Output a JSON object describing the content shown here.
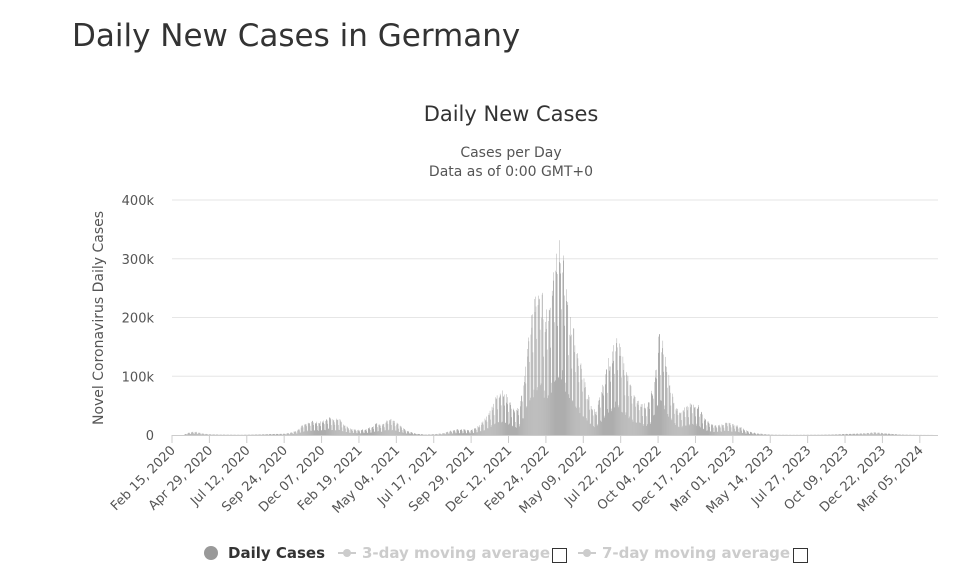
{
  "page": {
    "title": "Daily New Cases in Germany"
  },
  "chart_data": {
    "type": "bar",
    "title": "Daily New Cases",
    "subtitle_lines": [
      "Cases per Day",
      "Data as of 0:00 GMT+0"
    ],
    "ylabel": "Novel Coronavirus Daily Cases",
    "xlabel": "",
    "ylim": [
      0,
      400000
    ],
    "y_ticks": [
      0,
      100000,
      200000,
      300000,
      400000
    ],
    "y_tick_labels": [
      "0",
      "100k",
      "200k",
      "300k",
      "400k"
    ],
    "x_range": [
      "2020-02-15",
      "2024-04-10"
    ],
    "x_tick_dates": [
      "2020-02-15",
      "2020-04-29",
      "2020-07-12",
      "2020-09-24",
      "2020-12-07",
      "2021-02-19",
      "2021-05-04",
      "2021-07-17",
      "2021-09-29",
      "2021-12-12",
      "2022-02-24",
      "2022-05-09",
      "2022-07-22",
      "2022-10-04",
      "2022-12-17",
      "2023-03-01",
      "2023-05-14",
      "2023-07-27",
      "2023-10-09",
      "2023-12-22",
      "2024-03-05"
    ],
    "x_tick_labels": [
      "Feb 15, 2020",
      "Apr 29, 2020",
      "Jul 12, 2020",
      "Sep 24, 2020",
      "Dec 07, 2020",
      "Feb 19, 2021",
      "May 04, 2021",
      "Jul 17, 2021",
      "Sep 29, 2021",
      "Dec 12, 2021",
      "Feb 24, 2022",
      "May 09, 2022",
      "Jul 22, 2022",
      "Oct 04, 2022",
      "Dec 17, 2022",
      "Mar 01, 2023",
      "May 14, 2023",
      "Jul 27, 2023",
      "Oct 09, 2023",
      "Dec 22, 2023",
      "Mar 05, 2024"
    ],
    "grid": true,
    "series": [
      {
        "name": "Daily Cases",
        "color": "#999999",
        "points": [
          [
            "2020-03-10",
            1000
          ],
          [
            "2020-03-20",
            4000
          ],
          [
            "2020-03-28",
            5500
          ],
          [
            "2020-04-05",
            4500
          ],
          [
            "2020-04-15",
            2500
          ],
          [
            "2020-04-28",
            1200
          ],
          [
            "2020-05-20",
            600
          ],
          [
            "2020-07-01",
            400
          ],
          [
            "2020-08-15",
            1200
          ],
          [
            "2020-09-24",
            2000
          ],
          [
            "2020-10-10",
            4500
          ],
          [
            "2020-10-20",
            8000
          ],
          [
            "2020-10-28",
            15000
          ],
          [
            "2020-11-05",
            20000
          ],
          [
            "2020-11-20",
            22000
          ],
          [
            "2020-12-05",
            21000
          ],
          [
            "2020-12-15",
            25000
          ],
          [
            "2020-12-22",
            30000
          ],
          [
            "2021-01-01",
            22000
          ],
          [
            "2021-01-08",
            28000
          ],
          [
            "2021-01-20",
            17000
          ],
          [
            "2021-02-01",
            11000
          ],
          [
            "2021-02-15",
            8000
          ],
          [
            "2021-03-01",
            9000
          ],
          [
            "2021-03-15",
            13000
          ],
          [
            "2021-03-25",
            19000
          ],
          [
            "2021-04-05",
            16000
          ],
          [
            "2021-04-12",
            22000
          ],
          [
            "2021-04-20",
            27000
          ],
          [
            "2021-04-28",
            24000
          ],
          [
            "2021-05-10",
            15000
          ],
          [
            "2021-05-25",
            7000
          ],
          [
            "2021-06-10",
            2500
          ],
          [
            "2021-07-01",
            700
          ],
          [
            "2021-07-20",
            1500
          ],
          [
            "2021-08-05",
            3000
          ],
          [
            "2021-08-20",
            7000
          ],
          [
            "2021-09-01",
            10000
          ],
          [
            "2021-09-15",
            9000
          ],
          [
            "2021-09-29",
            8000
          ],
          [
            "2021-10-10",
            12000
          ],
          [
            "2021-10-20",
            20000
          ],
          [
            "2021-11-01",
            32000
          ],
          [
            "2021-11-10",
            48000
          ],
          [
            "2021-11-18",
            62000
          ],
          [
            "2021-11-25",
            72000
          ],
          [
            "2021-12-05",
            65000
          ],
          [
            "2021-12-15",
            52000
          ],
          [
            "2021-12-25",
            35000
          ],
          [
            "2022-01-02",
            45000
          ],
          [
            "2022-01-10",
            85000
          ],
          [
            "2022-01-18",
            140000
          ],
          [
            "2022-01-25",
            185000
          ],
          [
            "2022-02-01",
            210000
          ],
          [
            "2022-02-08",
            240000
          ],
          [
            "2022-02-15",
            225000
          ],
          [
            "2022-02-24",
            190000
          ],
          [
            "2022-03-03",
            210000
          ],
          [
            "2022-03-10",
            260000
          ],
          [
            "2022-03-17",
            300000
          ],
          [
            "2022-03-24",
            298000
          ],
          [
            "2022-03-31",
            270000
          ],
          [
            "2022-04-07",
            210000
          ],
          [
            "2022-04-14",
            180000
          ],
          [
            "2022-04-21",
            160000
          ],
          [
            "2022-04-28",
            130000
          ],
          [
            "2022-05-05",
            110000
          ],
          [
            "2022-05-12",
            85000
          ],
          [
            "2022-05-19",
            62000
          ],
          [
            "2022-05-26",
            45000
          ],
          [
            "2022-06-02",
            40000
          ],
          [
            "2022-06-09",
            55000
          ],
          [
            "2022-06-16",
            80000
          ],
          [
            "2022-06-23",
            105000
          ],
          [
            "2022-06-30",
            125000
          ],
          [
            "2022-07-07",
            140000
          ],
          [
            "2022-07-14",
            150000
          ],
          [
            "2022-07-21",
            135000
          ],
          [
            "2022-07-28",
            115000
          ],
          [
            "2022-08-04",
            95000
          ],
          [
            "2022-08-11",
            75000
          ],
          [
            "2022-08-18",
            65000
          ],
          [
            "2022-08-25",
            58000
          ],
          [
            "2022-09-01",
            52000
          ],
          [
            "2022-09-08",
            48000
          ],
          [
            "2022-09-15",
            52000
          ],
          [
            "2022-09-22",
            70000
          ],
          [
            "2022-09-29",
            110000
          ],
          [
            "2022-10-06",
            165000
          ],
          [
            "2022-10-13",
            150000
          ],
          [
            "2022-10-20",
            115000
          ],
          [
            "2022-10-27",
            85000
          ],
          [
            "2022-11-03",
            60000
          ],
          [
            "2022-11-10",
            45000
          ],
          [
            "2022-11-17",
            40000
          ],
          [
            "2022-11-24",
            42000
          ],
          [
            "2022-12-01",
            45000
          ],
          [
            "2022-12-08",
            50000
          ],
          [
            "2022-12-15",
            52000
          ],
          [
            "2022-12-22",
            48000
          ],
          [
            "2022-12-29",
            35000
          ],
          [
            "2023-01-05",
            25000
          ],
          [
            "2023-01-15",
            18000
          ],
          [
            "2023-01-25",
            15000
          ],
          [
            "2023-02-05",
            17000
          ],
          [
            "2023-02-15",
            20000
          ],
          [
            "2023-02-25",
            18000
          ],
          [
            "2023-03-05",
            17000
          ],
          [
            "2023-03-15",
            13000
          ],
          [
            "2023-03-25",
            8000
          ],
          [
            "2023-04-05",
            5000
          ],
          [
            "2023-04-15",
            3000
          ],
          [
            "2023-05-01",
            1500
          ],
          [
            "2023-05-20",
            500
          ],
          [
            "2023-07-01",
            250
          ],
          [
            "2023-08-20",
            500
          ],
          [
            "2023-09-20",
            1000
          ],
          [
            "2023-10-20",
            2000
          ],
          [
            "2023-11-20",
            3000
          ],
          [
            "2023-12-05",
            4500
          ],
          [
            "2023-12-20",
            3500
          ],
          [
            "2024-01-05",
            2000
          ],
          [
            "2024-01-25",
            700
          ],
          [
            "2024-03-01",
            200
          ],
          [
            "2024-04-01",
            100
          ]
        ]
      }
    ]
  },
  "legend": {
    "items": [
      {
        "label": "Daily Cases",
        "state": "active"
      },
      {
        "label": "3-day moving average",
        "state": "inactive"
      },
      {
        "label": "7-day moving average",
        "state": "inactive"
      }
    ]
  },
  "colors": {
    "bars": "#999999",
    "grid": "#e6e6e6",
    "axis": "#cccccc",
    "text": "#333333",
    "inactive": "#cccccc"
  }
}
